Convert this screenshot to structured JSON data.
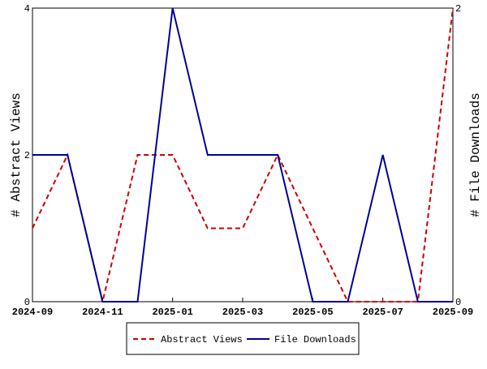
{
  "chart_data": {
    "type": "line",
    "x": [
      "2024-09",
      "2024-10",
      "2024-11",
      "2024-12",
      "2025-01",
      "2025-02",
      "2025-03",
      "2025-04",
      "2025-05",
      "2025-06",
      "2025-07",
      "2025-08",
      "2025-09"
    ],
    "series": [
      {
        "name": "Abstract Views",
        "color": "#cc0000",
        "dash": true,
        "values": [
          1,
          2,
          0,
          2,
          2,
          1,
          1,
          2,
          1,
          0,
          0,
          0,
          4
        ]
      },
      {
        "name": "File Downloads",
        "color": "#000099",
        "axis": "y2",
        "values": [
          1,
          1,
          0,
          0,
          2,
          1,
          1,
          1,
          0,
          0,
          1,
          0,
          0
        ]
      }
    ],
    "ylabel": "# Abstract Views",
    "y2label": "# File Downloads",
    "ylim": [
      0,
      4
    ],
    "yticks": [
      0,
      2,
      4
    ],
    "y2lim": [
      0,
      2
    ],
    "y2ticks": [
      0,
      2
    ],
    "xticks": [
      "2024-09",
      "2024-11",
      "2025-01",
      "2025-03",
      "2025-05",
      "2025-07",
      "2025-09"
    ],
    "legend": "bottom"
  }
}
